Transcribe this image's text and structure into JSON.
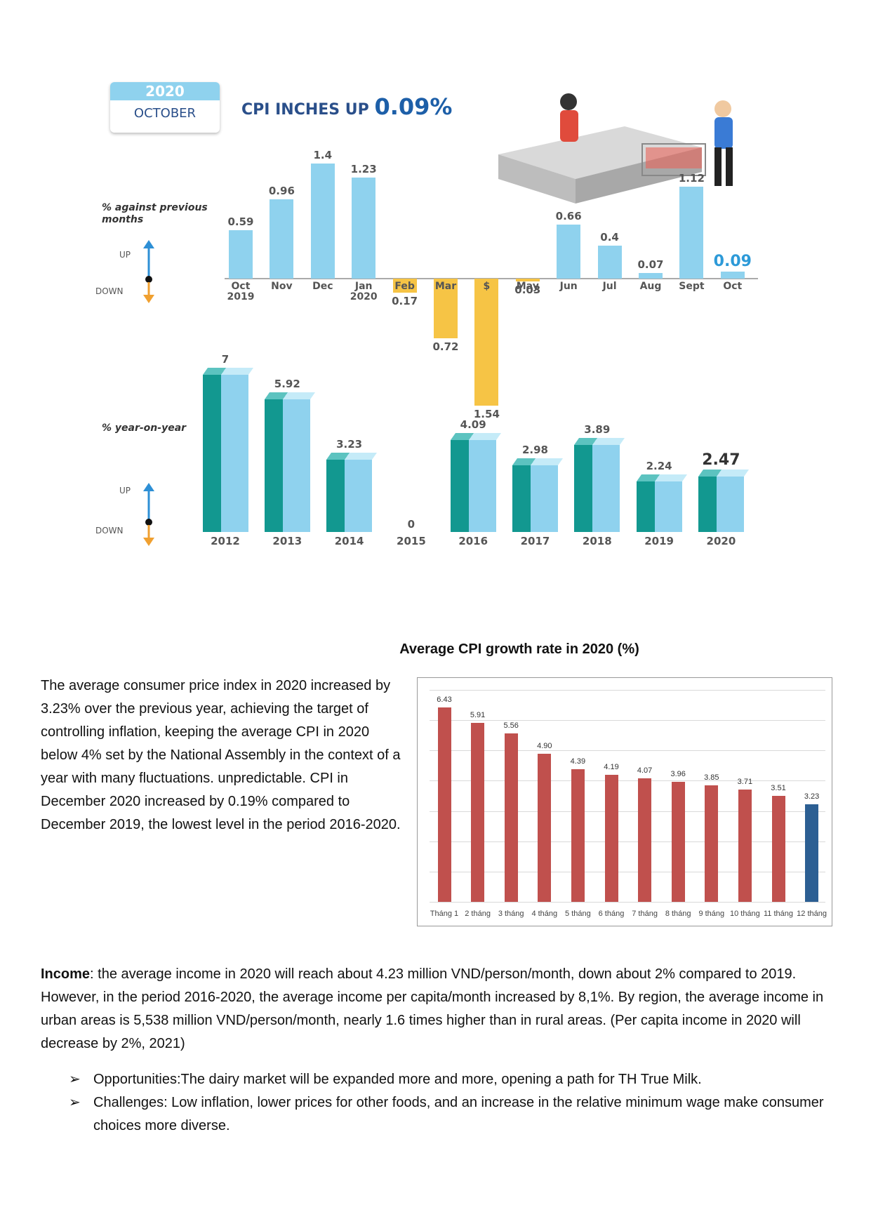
{
  "infographic": {
    "year": "2020",
    "month": "OCTOBER",
    "headline": "CPI INCHES UP",
    "headline_value": "0.09%"
  },
  "chart_data": [
    {
      "type": "bar",
      "axis_label": "% against previous months",
      "up_label": "UP",
      "down_label": "DOWN",
      "categories": [
        "Oct\n2019",
        "Nov",
        "Dec",
        "Jan\n2020",
        "Feb",
        "Mar",
        "$",
        "May",
        "Jun",
        "Jul",
        "Aug",
        "Sept",
        "Oct"
      ],
      "values": [
        0.59,
        0.96,
        1.4,
        1.23,
        -0.17,
        -0.72,
        -1.54,
        -0.03,
        0.66,
        0.4,
        0.07,
        1.12,
        0.09
      ],
      "value_labels": [
        "0.59",
        "0.96",
        "1.4",
        "1.23",
        "0.17",
        "0.72",
        "1.54",
        "0.03",
        "0.66",
        "0.4",
        "0.07",
        "1.12",
        "0.09"
      ],
      "color": "#8fd2ee",
      "negative_color": "#f6c445",
      "ylim": [
        -1.6,
        1.5
      ]
    },
    {
      "type": "bar3d",
      "axis_label": "% year-on-year",
      "up_label": "UP",
      "down_label": "DOWN",
      "categories": [
        "2012",
        "2013",
        "2014",
        "2015",
        "2016",
        "2017",
        "2018",
        "2019",
        "2020"
      ],
      "values": [
        7,
        5.92,
        3.23,
        0,
        4.09,
        2.98,
        3.89,
        2.24,
        2.47
      ],
      "ylim": [
        0,
        7.5
      ]
    },
    {
      "type": "bar",
      "title": "Average CPI growth rate in 2020 (%)",
      "categories": [
        "Tháng 1",
        "2 tháng",
        "3 tháng",
        "4 tháng",
        "5 tháng",
        "6 tháng",
        "7 tháng",
        "8 tháng",
        "9 tháng",
        "10 tháng",
        "11 tháng",
        "12 tháng"
      ],
      "values": [
        6.43,
        5.91,
        5.56,
        4.9,
        4.39,
        4.19,
        4.07,
        3.96,
        3.85,
        3.71,
        3.51,
        3.23
      ],
      "value_labels": [
        "6.43",
        "5.91",
        "5.56",
        "4.90",
        "4.39",
        "4.19",
        "4.07",
        "3.96",
        "3.85",
        "3.71",
        "3.51",
        "3.23"
      ],
      "colors": [
        "#c0504d",
        "#c0504d",
        "#c0504d",
        "#c0504d",
        "#c0504d",
        "#c0504d",
        "#c0504d",
        "#c0504d",
        "#c0504d",
        "#c0504d",
        "#c0504d",
        "#2c5f93"
      ],
      "ylim": [
        0,
        7
      ],
      "yticks": [
        0,
        1,
        2,
        3,
        4,
        5,
        6,
        7
      ],
      "grid": true
    }
  ],
  "text": {
    "paragraph": "The average consumer price index in 2020 increased by 3.23% over the previous year, achieving the target of controlling inflation, keeping the average CPI in 2020 below 4% set by the National Assembly in the context of a year with many fluctuations. unpredictable. CPI in December 2020 increased by 0.19% compared to December 2019, the lowest level in the period 2016-2020.",
    "income": {
      "label": "Income",
      "text": ": the average income in 2020 will reach about 4.23 million VND/person/month, down about 2% compared to 2019. However, in the period 2016-2020, the average income per capita/month increased by 8,1%. By region, the average income in urban areas is 5,538 million VND/person/month, nearly 1.6 times higher than in rural areas. (Per capita income in 2020 will decrease by 2%, 2021)"
    },
    "bullets": [
      "Opportunities:The dairy market will be expanded more and more, opening a path for TH True Milk.",
      "Challenges: Low inflation, lower prices for other foods, and an increase in the relative minimum wage make consumer choices more diverse."
    ]
  }
}
